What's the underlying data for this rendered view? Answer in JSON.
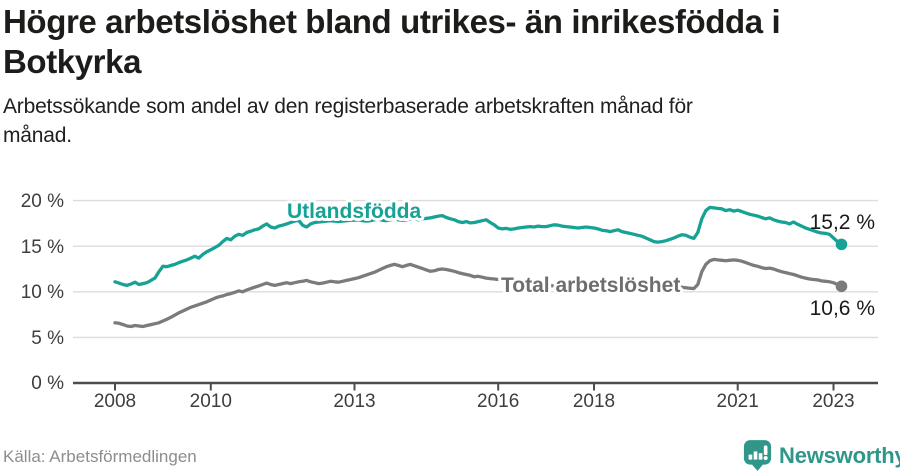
{
  "header": {
    "title": "Högre arbetslöshet bland utrikes- än inrikesfödda i\nBotkyrka",
    "subtitle": "Arbetssökande som andel av den registerbaserade arbetskraften månad för\nmånad."
  },
  "footer": {
    "source": "Källa: Arbetsförmedlingen",
    "brand": "Newsworthy"
  },
  "colors": {
    "foreign_born_line": "#16a294",
    "total_line": "#7b7b7d",
    "total_label": "#6e6e71",
    "grid": "#dcdcdc",
    "axis": "#4c4c4c",
    "brand_teal": "#31968a"
  },
  "chart_data": {
    "type": "line",
    "title": "",
    "xlabel": "",
    "ylabel": "",
    "x_start": "2008-01",
    "x_end": "2023-03",
    "x_frequency": "monthly",
    "ylim": [
      0,
      20
    ],
    "grid": "horizontal",
    "legend_position": "inline-labels-on-lines",
    "y_ticks": [
      {
        "value": 0,
        "label": "0 %"
      },
      {
        "value": 5,
        "label": "5 %"
      },
      {
        "value": 10,
        "label": "10 %"
      },
      {
        "value": 15,
        "label": "15 %"
      },
      {
        "value": 20,
        "label": "20 %"
      }
    ],
    "x_ticks": [
      {
        "year": 2008,
        "label": "2008"
      },
      {
        "year": 2010,
        "label": "2010"
      },
      {
        "year": 2013,
        "label": "2013"
      },
      {
        "year": 2016,
        "label": "2016"
      },
      {
        "year": 2018,
        "label": "2018"
      },
      {
        "year": 2021,
        "label": "2021"
      },
      {
        "year": 2023,
        "label": "2023"
      }
    ],
    "series": [
      {
        "name": "Utlandsfödda",
        "color": "#16a294",
        "end_label": "15,2 %",
        "end_value": 15.2,
        "values": [
          11.1,
          10.95,
          10.8,
          10.7,
          10.85,
          11.05,
          10.8,
          10.9,
          11.0,
          11.25,
          11.5,
          12.2,
          12.8,
          12.75,
          12.9,
          13.0,
          13.2,
          13.35,
          13.5,
          13.7,
          13.9,
          13.7,
          14.1,
          14.4,
          14.6,
          14.85,
          15.1,
          15.5,
          15.85,
          15.7,
          16.1,
          16.3,
          16.2,
          16.5,
          16.65,
          16.8,
          16.9,
          17.2,
          17.45,
          17.1,
          17.0,
          17.2,
          17.3,
          17.45,
          17.6,
          17.75,
          17.85,
          17.3,
          17.1,
          17.45,
          17.6,
          17.65,
          17.7,
          17.75,
          17.8,
          17.75,
          17.7,
          17.75,
          17.8,
          17.85,
          17.85,
          17.9,
          17.8,
          17.75,
          17.8,
          17.9,
          17.95,
          17.85,
          17.8,
          17.9,
          17.95,
          17.9,
          17.85,
          17.9,
          17.95,
          18.0,
          17.9,
          18.0,
          18.05,
          18.1,
          18.2,
          18.3,
          18.35,
          18.15,
          18.0,
          17.9,
          17.7,
          17.6,
          17.7,
          17.55,
          17.6,
          17.7,
          17.8,
          17.9,
          17.6,
          17.35,
          17.0,
          16.9,
          16.95,
          16.85,
          16.9,
          17.0,
          17.05,
          17.1,
          17.15,
          17.1,
          17.2,
          17.15,
          17.15,
          17.25,
          17.35,
          17.3,
          17.2,
          17.15,
          17.1,
          17.05,
          17.0,
          17.05,
          17.1,
          17.05,
          17.0,
          16.9,
          16.75,
          16.7,
          16.6,
          16.7,
          16.8,
          16.6,
          16.5,
          16.4,
          16.3,
          16.2,
          16.1,
          15.9,
          15.7,
          15.5,
          15.45,
          15.5,
          15.6,
          15.75,
          15.9,
          16.1,
          16.25,
          16.2,
          16.0,
          15.85,
          16.5,
          18.0,
          18.9,
          19.25,
          19.2,
          19.15,
          19.1,
          18.9,
          19.0,
          18.85,
          18.95,
          18.8,
          18.65,
          18.5,
          18.4,
          18.3,
          18.15,
          18.0,
          18.1,
          17.9,
          17.75,
          17.65,
          17.6,
          17.45,
          17.65,
          17.4,
          17.2,
          17.0,
          16.85,
          16.7,
          16.55,
          16.45,
          16.4,
          16.3,
          15.9,
          15.5,
          15.2
        ]
      },
      {
        "name": "Total arbetslöshet",
        "color": "#7b7b7d",
        "end_label": "10,6 %",
        "end_value": 10.6,
        "values": [
          6.6,
          6.55,
          6.4,
          6.25,
          6.2,
          6.3,
          6.25,
          6.2,
          6.3,
          6.4,
          6.5,
          6.6,
          6.8,
          7.0,
          7.2,
          7.45,
          7.7,
          7.9,
          8.1,
          8.3,
          8.45,
          8.6,
          8.75,
          8.9,
          9.1,
          9.3,
          9.45,
          9.55,
          9.7,
          9.8,
          9.95,
          10.1,
          10.0,
          10.2,
          10.35,
          10.5,
          10.65,
          10.8,
          10.95,
          10.8,
          10.7,
          10.8,
          10.9,
          11.0,
          10.9,
          11.0,
          11.1,
          11.15,
          11.25,
          11.1,
          11.0,
          10.9,
          10.95,
          11.05,
          11.15,
          11.1,
          11.05,
          11.15,
          11.25,
          11.35,
          11.45,
          11.55,
          11.7,
          11.85,
          12.0,
          12.15,
          12.35,
          12.55,
          12.75,
          12.9,
          13.0,
          12.9,
          12.75,
          12.9,
          13.0,
          12.85,
          12.7,
          12.55,
          12.4,
          12.25,
          12.3,
          12.45,
          12.5,
          12.45,
          12.35,
          12.25,
          12.1,
          12.0,
          11.9,
          11.8,
          11.65,
          11.7,
          11.6,
          11.5,
          11.45,
          11.4,
          11.35,
          11.3,
          11.2,
          11.15,
          11.1,
          11.05,
          11.0,
          10.95,
          10.9,
          10.85,
          10.8,
          10.75,
          10.7,
          10.68,
          10.65,
          10.62,
          10.58,
          10.55,
          10.52,
          10.48,
          10.45,
          10.42,
          10.4,
          10.38,
          10.35,
          10.3,
          10.28,
          10.25,
          10.22,
          10.2,
          10.18,
          10.15,
          10.12,
          10.1,
          10.1,
          10.1,
          10.1,
          10.15,
          10.2,
          10.25,
          10.3,
          10.35,
          10.4,
          10.45,
          10.5,
          10.55,
          10.5,
          10.45,
          10.4,
          10.35,
          10.8,
          12.2,
          13.0,
          13.4,
          13.55,
          13.5,
          13.45,
          13.4,
          13.45,
          13.5,
          13.45,
          13.35,
          13.2,
          13.05,
          12.9,
          12.8,
          12.65,
          12.55,
          12.6,
          12.5,
          12.35,
          12.2,
          12.1,
          12.0,
          11.9,
          11.75,
          11.6,
          11.5,
          11.4,
          11.35,
          11.3,
          11.2,
          11.15,
          11.1,
          11.0,
          10.8,
          10.6
        ]
      }
    ]
  }
}
